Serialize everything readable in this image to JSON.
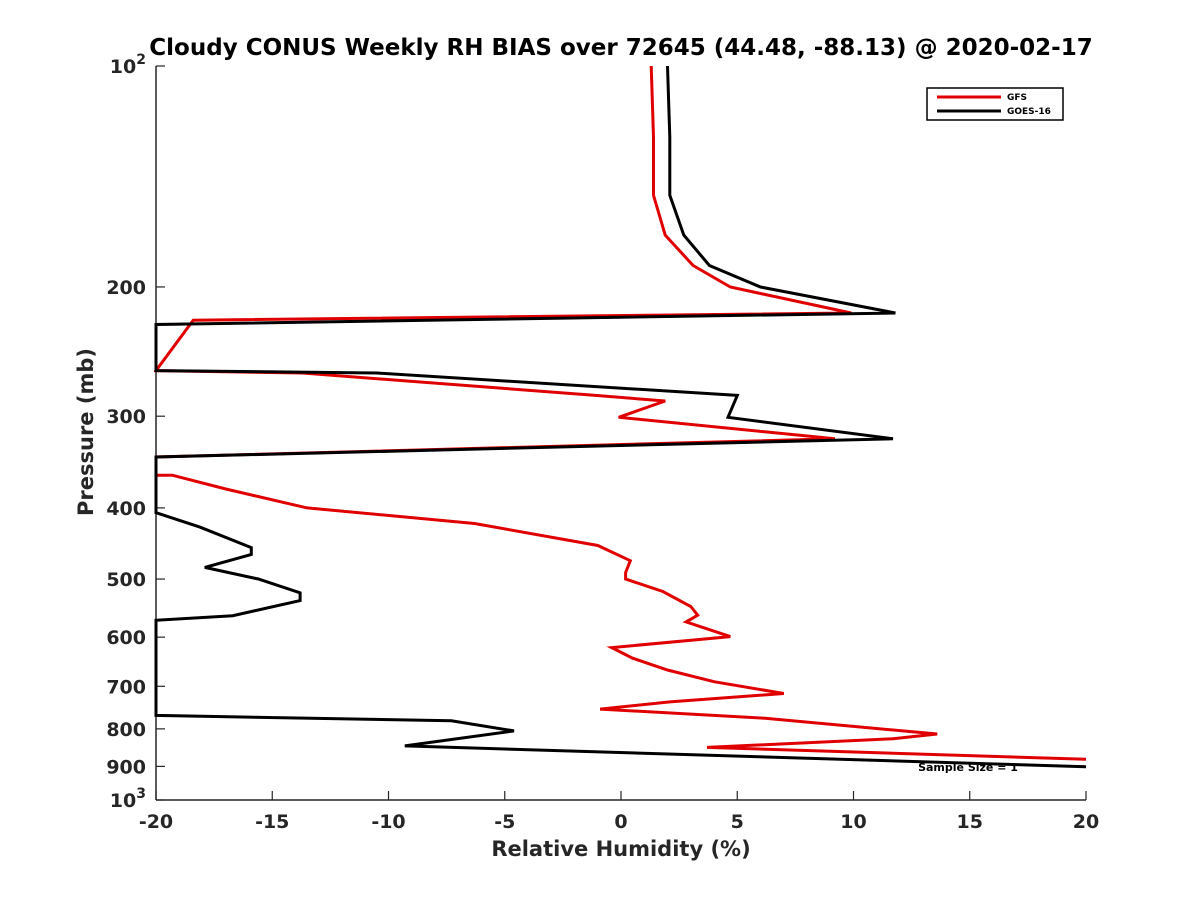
{
  "chart_data": {
    "type": "line",
    "title": "Cloudy CONUS Weekly RH BIAS over 72645 (44.48, -88.13) @ 2020-02-17",
    "xlabel": "Relative Humidity (%)",
    "ylabel": "Pressure (mb)",
    "xlim": [
      -20,
      20
    ],
    "ylim": [
      100,
      1000
    ],
    "y_scale": "log",
    "y_reversed": true,
    "grid": false,
    "legend_position": "top-right",
    "x_ticks": [
      -20,
      -15,
      -10,
      -5,
      0,
      5,
      10,
      15,
      20
    ],
    "y_ticks": [
      {
        "value": 100,
        "base": "10",
        "exp": "2"
      },
      {
        "value": 200,
        "label": "200"
      },
      {
        "value": 300,
        "label": "300"
      },
      {
        "value": 400,
        "label": "400"
      },
      {
        "value": 500,
        "label": "500"
      },
      {
        "value": 600,
        "label": "600"
      },
      {
        "value": 700,
        "label": "700"
      },
      {
        "value": 800,
        "label": "800"
      },
      {
        "value": 900,
        "label": "900"
      },
      {
        "value": 1000,
        "base": "10",
        "exp": "3"
      }
    ],
    "annotation": "Sample Size = 1",
    "series": [
      {
        "name": "GFS",
        "color": "#e00000",
        "points": [
          [
            1.3,
            100
          ],
          [
            1.4,
            125
          ],
          [
            1.4,
            150
          ],
          [
            1.9,
            170
          ],
          [
            3.1,
            187
          ],
          [
            4.7,
            200
          ],
          [
            9.9,
            217
          ],
          [
            -18.4,
            222
          ],
          [
            -20.0,
            260
          ],
          [
            -13.7,
            262
          ],
          [
            -1.1,
            281
          ],
          [
            1.9,
            286
          ],
          [
            -0.1,
            301
          ],
          [
            9.2,
            322
          ],
          [
            -20.0,
            341
          ],
          [
            -20.0,
            361
          ],
          [
            -19.3,
            361
          ],
          [
            -17.0,
            377
          ],
          [
            -13.5,
            400
          ],
          [
            -6.3,
            420
          ],
          [
            -1.0,
            450
          ],
          [
            0.4,
            472
          ],
          [
            0.2,
            490
          ],
          [
            0.2,
            500
          ],
          [
            1.8,
            520
          ],
          [
            3.0,
            545
          ],
          [
            3.3,
            560
          ],
          [
            2.8,
            572
          ],
          [
            4.7,
            599
          ],
          [
            -0.4,
            620
          ],
          [
            0.5,
            641
          ],
          [
            2.0,
            665
          ],
          [
            4.0,
            690
          ],
          [
            7.0,
            716
          ],
          [
            2.1,
            735
          ],
          [
            -0.9,
            752
          ],
          [
            6.2,
            774
          ],
          [
            13.6,
            813
          ],
          [
            11.7,
            825
          ],
          [
            3.7,
            848
          ],
          [
            20.0,
            880
          ]
        ]
      },
      {
        "name": "GOES-16",
        "color": "#000000",
        "points": [
          [
            2.0,
            100
          ],
          [
            2.1,
            125
          ],
          [
            2.1,
            150
          ],
          [
            2.7,
            170
          ],
          [
            3.8,
            187
          ],
          [
            6.0,
            200
          ],
          [
            11.8,
            217
          ],
          [
            -20.0,
            225
          ],
          [
            -20.0,
            260
          ],
          [
            -10.5,
            262
          ],
          [
            5.0,
            281
          ],
          [
            4.6,
            301
          ],
          [
            11.7,
            322
          ],
          [
            -20.0,
            341
          ],
          [
            -20.0,
            406
          ],
          [
            -18.1,
            425
          ],
          [
            -15.9,
            453
          ],
          [
            -15.9,
            463
          ],
          [
            -17.9,
            482
          ],
          [
            -15.6,
            500
          ],
          [
            -13.8,
            522
          ],
          [
            -13.8,
            535
          ],
          [
            -16.7,
            561
          ],
          [
            -20.0,
            569
          ],
          [
            -20.0,
            767
          ],
          [
            -7.3,
            780
          ],
          [
            -4.6,
            805
          ],
          [
            -9.3,
            844
          ],
          [
            20.0,
            901
          ]
        ]
      }
    ]
  }
}
